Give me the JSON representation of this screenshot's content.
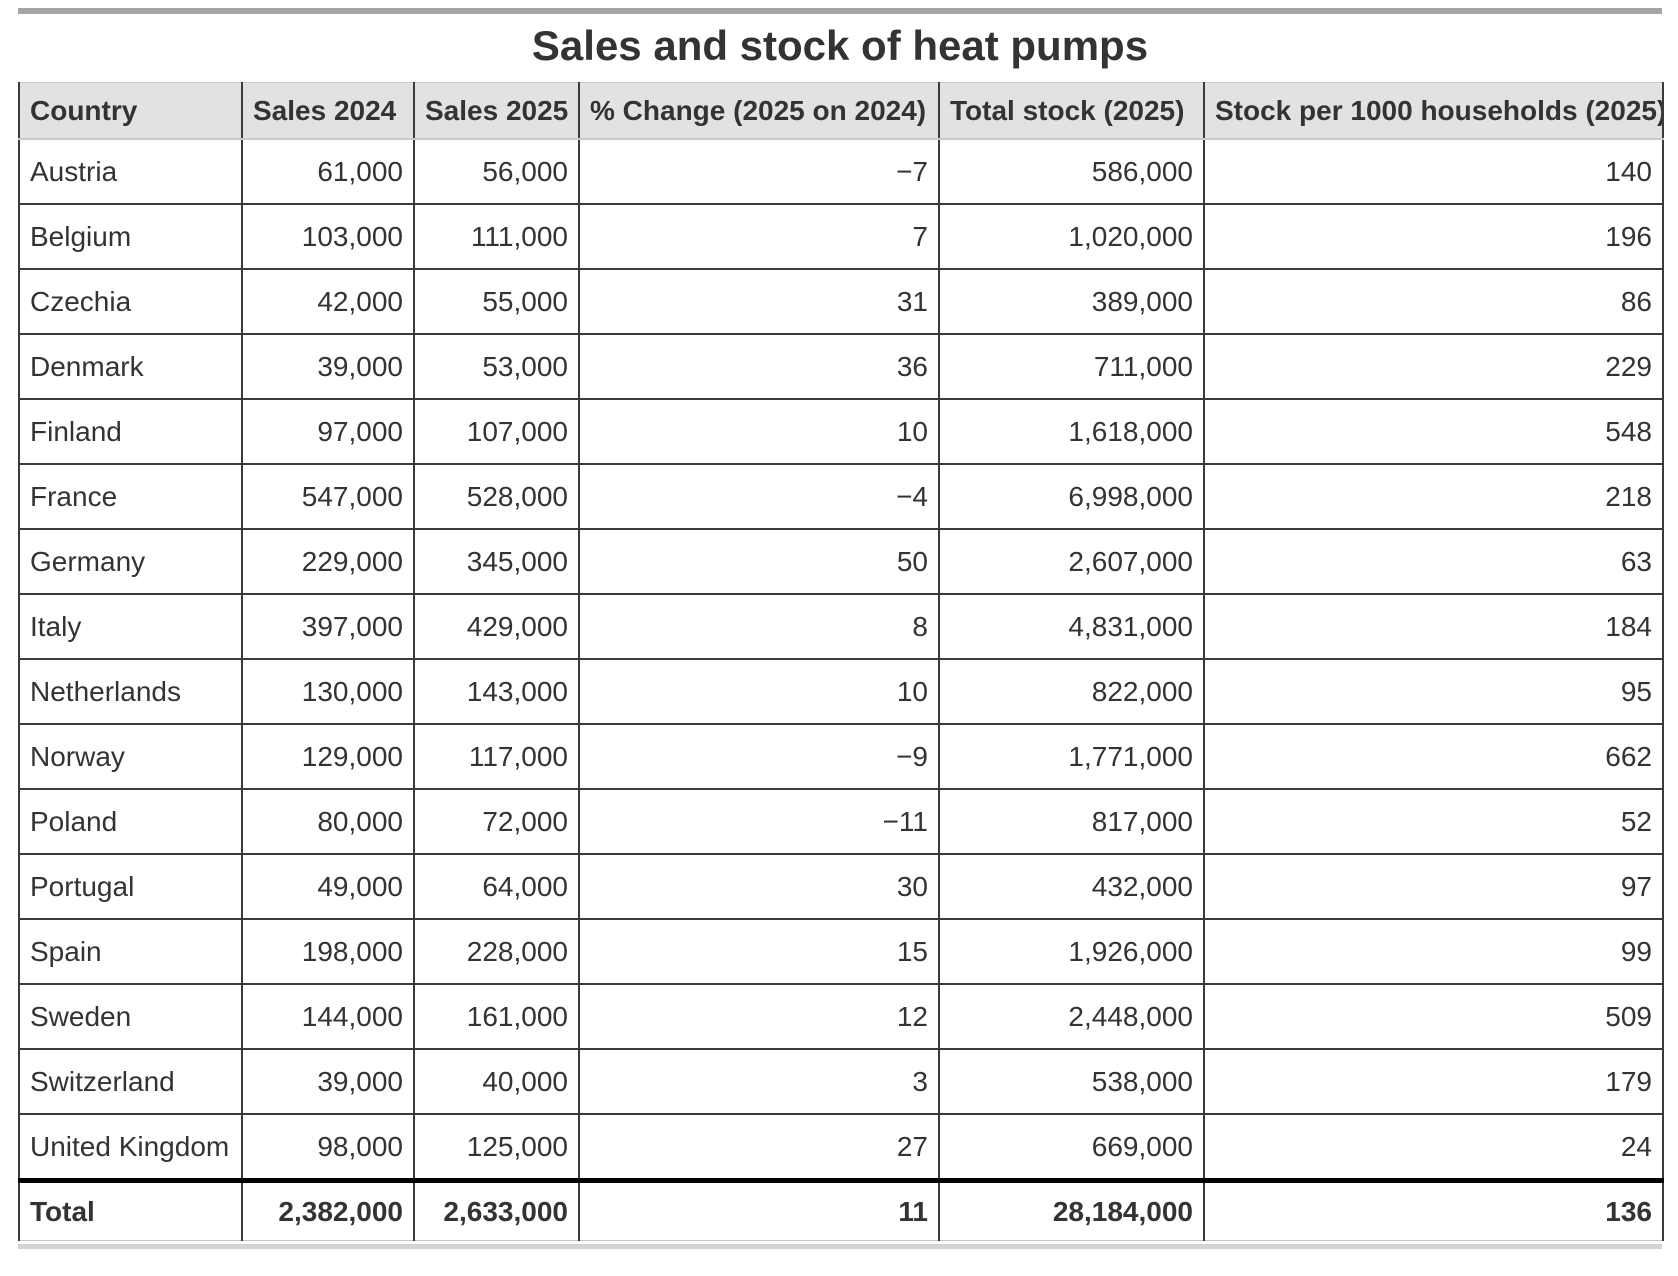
{
  "chart_data": {
    "type": "table",
    "title": "Sales and stock of heat pumps",
    "columns": [
      "Country",
      "Sales 2024",
      "Sales 2025",
      "% Change (2025 on 2024)",
      "Total stock (2025)",
      "Stock per 1000 households (2025)"
    ],
    "rows": [
      [
        "Austria",
        "61,000",
        "56,000",
        "−7",
        "586,000",
        "140"
      ],
      [
        "Belgium",
        "103,000",
        "111,000",
        "7",
        "1,020,000",
        "196"
      ],
      [
        "Czechia",
        "42,000",
        "55,000",
        "31",
        "389,000",
        "86"
      ],
      [
        "Denmark",
        "39,000",
        "53,000",
        "36",
        "711,000",
        "229"
      ],
      [
        "Finland",
        "97,000",
        "107,000",
        "10",
        "1,618,000",
        "548"
      ],
      [
        "France",
        "547,000",
        "528,000",
        "−4",
        "6,998,000",
        "218"
      ],
      [
        "Germany",
        "229,000",
        "345,000",
        "50",
        "2,607,000",
        "63"
      ],
      [
        "Italy",
        "397,000",
        "429,000",
        "8",
        "4,831,000",
        "184"
      ],
      [
        "Netherlands",
        "130,000",
        "143,000",
        "10",
        "822,000",
        "95"
      ],
      [
        "Norway",
        "129,000",
        "117,000",
        "−9",
        "1,771,000",
        "662"
      ],
      [
        "Poland",
        "80,000",
        "72,000",
        "−11",
        "817,000",
        "52"
      ],
      [
        "Portugal",
        "49,000",
        "64,000",
        "30",
        "432,000",
        "97"
      ],
      [
        "Spain",
        "198,000",
        "228,000",
        "15",
        "1,926,000",
        "99"
      ],
      [
        "Sweden",
        "144,000",
        "161,000",
        "12",
        "2,448,000",
        "509"
      ],
      [
        "Switzerland",
        "39,000",
        "40,000",
        "3",
        "538,000",
        "179"
      ],
      [
        "United Kingdom",
        "98,000",
        "125,000",
        "27",
        "669,000",
        "24"
      ]
    ],
    "total_row": [
      "Total",
      "2,382,000",
      "2,633,000",
      "11",
      "28,184,000",
      "136"
    ]
  },
  "colors": {
    "header_bg": "#e2e2e2",
    "border_dark": "#3b3b3b",
    "border_light": "#c9c9c9",
    "total_separator": "#000000",
    "top_rule": "#a4a4a4",
    "bottom_rule": "#d4d4d4",
    "text": "#333333"
  }
}
